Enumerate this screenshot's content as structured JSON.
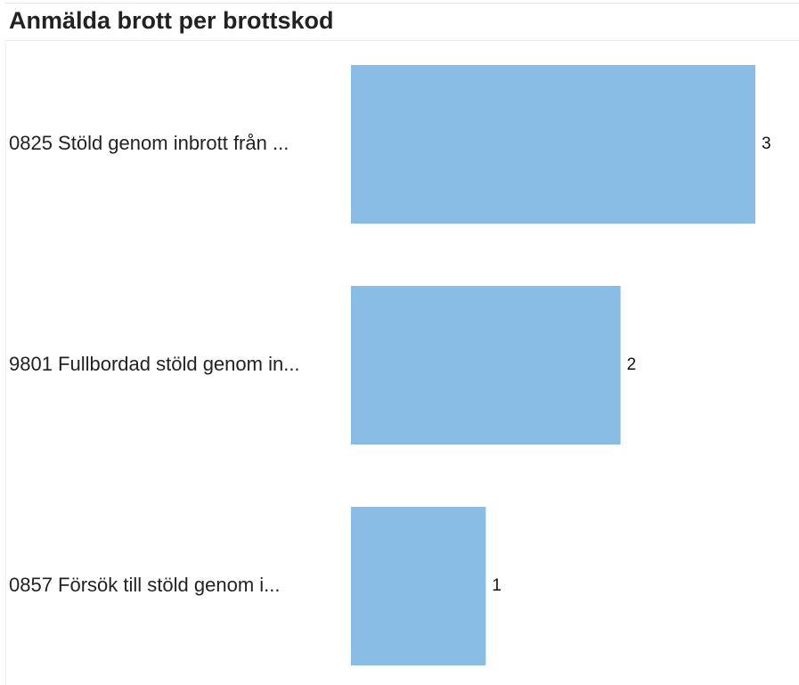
{
  "chart_data": {
    "type": "bar",
    "orientation": "horizontal",
    "title": "Anmälda brott per brottskod",
    "categories": [
      "0825 Stöld genom inbrott från ...",
      "9801 Fullbordad stöld genom in...",
      "0857 Försök till stöld genom i..."
    ],
    "values": [
      3,
      2,
      1
    ],
    "xlim": [
      0,
      3
    ],
    "grid": false,
    "legend": "none",
    "bar_color": "#89bde6"
  }
}
